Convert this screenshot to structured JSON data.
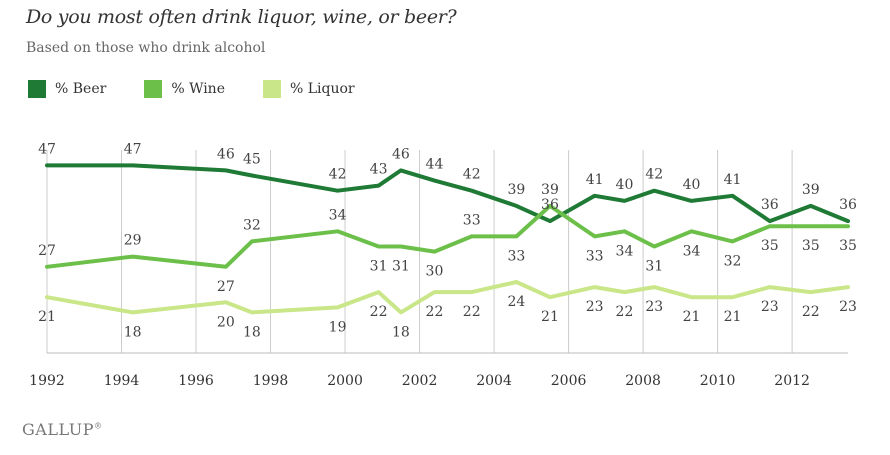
{
  "title": "Do you most often drink liquor, wine, or beer?",
  "subtitle": "Based on those who drink alcohol",
  "brand": "GALLUP",
  "colors": {
    "beer": "#1e7a34",
    "wine": "#6cc04a",
    "liquor": "#c9e688",
    "grid": "#cccccc"
  },
  "chart_data": {
    "type": "line",
    "title": "Do you most often drink liquor, wine, or beer?",
    "subtitle": "Based on those who drink alcohol",
    "x": [
      1992,
      1994.3,
      1996.8,
      1997.5,
      1999.8,
      2000.9,
      2001.5,
      2002.4,
      2003.4,
      2004.6,
      2005.5,
      2006.7,
      2007.5,
      2008.3,
      2009.3,
      2010.4,
      2011.4,
      2012.5,
      2013.5
    ],
    "x_ticks": [
      1992,
      1994,
      1996,
      1998,
      2000,
      2002,
      2004,
      2006,
      2008,
      2010,
      2012
    ],
    "x_tick_labels": [
      "1992",
      "1994",
      "1996",
      "1998",
      "2000",
      "2002",
      "2004",
      "2006",
      "2008",
      "2010",
      "2012"
    ],
    "xlim": [
      1992,
      2013.5
    ],
    "ylim": [
      10,
      52
    ],
    "series": [
      {
        "name": "% Beer",
        "color": "#1e7a34",
        "values": [
          47,
          47,
          46,
          45,
          42,
          43,
          46,
          44,
          42,
          39,
          36,
          41,
          40,
          42,
          40,
          41,
          36,
          39,
          36
        ]
      },
      {
        "name": "% Wine",
        "color": "#6cc04a",
        "values": [
          27,
          29,
          27,
          32,
          34,
          31,
          31,
          30,
          33,
          33,
          39,
          33,
          34,
          31,
          34,
          32,
          35,
          35,
          35
        ]
      },
      {
        "name": "% Liquor",
        "color": "#c9e688",
        "values": [
          21,
          18,
          20,
          18,
          19,
          22,
          18,
          22,
          22,
          24,
          21,
          23,
          22,
          23,
          21,
          21,
          23,
          22,
          23
        ]
      }
    ],
    "legend": "top-left"
  }
}
